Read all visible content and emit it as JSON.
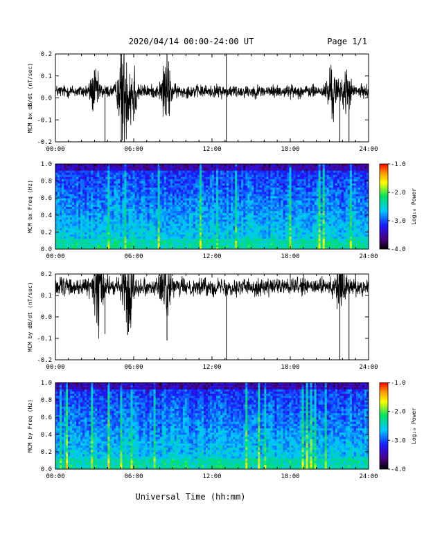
{
  "header": {
    "title": "2020/04/14  00:00-24:00 UT",
    "page": "Page 1/1"
  },
  "footer": {
    "xlabel": "Universal Time (hh:mm)"
  },
  "colorbar": {
    "label": "Log₁₀ Power",
    "ticks": [
      "-1.0",
      "-2.0",
      "-3.0",
      "-4.0"
    ],
    "range": [
      -4.0,
      -1.0
    ]
  },
  "x_ticks": [
    "00:00",
    "06:00",
    "12:00",
    "18:00",
    "24:00"
  ],
  "chart_data": [
    {
      "type": "line",
      "ylabel": "MCM bx dB/dt (nT/sec)",
      "xlim": [
        0,
        24
      ],
      "ylim": [
        -0.2,
        0.2
      ],
      "y_ticks": [
        "0.2",
        "0.1",
        "0.0",
        "-0.1",
        "-0.2"
      ],
      "baseline": 0.03,
      "noise": 0.018,
      "bursts": [
        [
          3.0,
          0.05
        ],
        [
          5.2,
          0.15
        ],
        [
          5.9,
          0.1
        ],
        [
          8.5,
          0.09
        ],
        [
          21.2,
          0.07
        ],
        [
          22.3,
          0.05
        ]
      ],
      "spikes": [
        [
          3.8,
          -0.2
        ],
        [
          5.05,
          -0.2
        ],
        [
          8.55,
          0.2
        ],
        [
          13.1,
          0.2
        ],
        [
          13.1,
          -0.2
        ],
        [
          21.8,
          -0.2
        ],
        [
          22.5,
          -0.2
        ]
      ]
    },
    {
      "type": "heatmap",
      "ylabel": "MCM bx Freq (Hz)",
      "xlim": [
        0,
        24
      ],
      "ylim": [
        0,
        1.0
      ],
      "y_ticks": [
        "1.0",
        "0.8",
        "0.6",
        "0.4",
        "0.2",
        "0.0"
      ],
      "color_range": [
        -4.0,
        -1.0
      ]
    },
    {
      "type": "line",
      "ylabel": "MCM by dB/dt (nT/sec)",
      "xlim": [
        0,
        24
      ],
      "ylim": [
        -0.2,
        0.2
      ],
      "y_ticks": [
        "0.2",
        "0.1",
        "0.0",
        "-0.1",
        "-0.2"
      ],
      "baseline": 0.14,
      "noise": 0.025,
      "bursts": [
        [
          3.3,
          0.1
        ],
        [
          5.6,
          0.12
        ],
        [
          8.4,
          0.08
        ],
        [
          21.8,
          0.08
        ]
      ],
      "spikes": [
        [
          3.8,
          -0.08
        ],
        [
          5.6,
          -0.07
        ],
        [
          8.55,
          -0.11
        ],
        [
          13.1,
          -0.2
        ],
        [
          21.8,
          -0.2
        ],
        [
          22.5,
          -0.2
        ]
      ]
    },
    {
      "type": "heatmap",
      "ylabel": "MCM by Freq (Hz)",
      "xlim": [
        0,
        24
      ],
      "ylim": [
        0,
        1.0
      ],
      "y_ticks": [
        "1.0",
        "0.8",
        "0.6",
        "0.4",
        "0.2",
        "0.0"
      ],
      "color_range": [
        -4.0,
        -1.0
      ]
    }
  ]
}
